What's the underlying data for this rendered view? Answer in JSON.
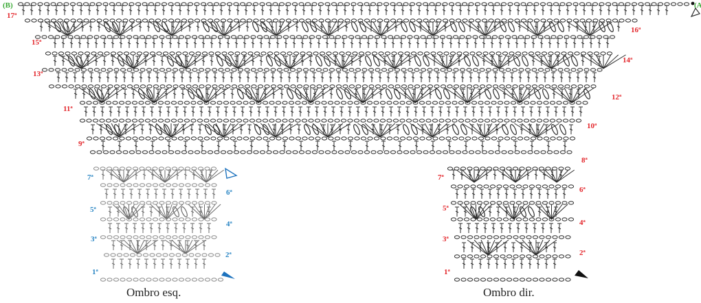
{
  "colors": {
    "red": "#e3262b",
    "blue": "#2a86c4",
    "green": "#3aa935",
    "ink": "#2b2b2b",
    "light_ink": "#8a8a8a",
    "arrow_blue": "#1e73be",
    "arrow_black": "#111111"
  },
  "markers": {
    "b": "(B)",
    "a": "(A"
  },
  "captions": {
    "left": "Ombro esq.",
    "right": "Ombro dir."
  },
  "yoke_labels": {
    "r17": "17ª",
    "r16": "16ª",
    "r15": "15ª",
    "r14": "14ª",
    "r13": "13ª",
    "r12": "12ª",
    "r11": "11ª",
    "r10": "10ª",
    "r9": "9ª",
    "r8": "8ª"
  },
  "left_shoulder_labels": {
    "r7": "7ª",
    "r6": "6ª",
    "r5": "5ª",
    "r4": "4ª",
    "r3": "3ª",
    "r2": "2ª",
    "r1": "1ª"
  },
  "right_shoulder_labels": {
    "r7": "7ª",
    "r6": "6ª",
    "r5": "5ª",
    "r4": "4ª",
    "r3": "3ª",
    "r2": "2ª",
    "r1": "1ª"
  }
}
